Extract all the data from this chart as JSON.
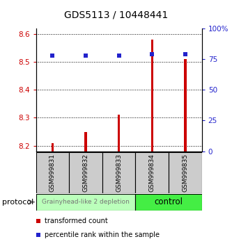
{
  "title": "GDS5113 / 10448441",
  "samples": [
    "GSM999831",
    "GSM999832",
    "GSM999833",
    "GSM999834",
    "GSM999835"
  ],
  "transformed_counts": [
    8.21,
    8.25,
    8.31,
    8.58,
    8.51
  ],
  "percentile_ranks": [
    78,
    78,
    78,
    79,
    79
  ],
  "ylim_left": [
    8.18,
    8.62
  ],
  "ylim_right": [
    0,
    100
  ],
  "yticks_left": [
    8.2,
    8.3,
    8.4,
    8.5,
    8.6
  ],
  "yticks_right": [
    0,
    25,
    50,
    75,
    100
  ],
  "ytick_labels_right": [
    "0",
    "25",
    "50",
    "75",
    "100%"
  ],
  "bar_color": "#cc0000",
  "dot_color": "#2222cc",
  "left_tick_color": "#cc0000",
  "right_tick_color": "#2222cc",
  "bar_width": 0.07,
  "dot_size": 5,
  "groups": [
    {
      "label": "Grainyhead-like 2 depletion",
      "n": 3,
      "color": "#bbffbb",
      "text_color": "#777777",
      "fontsize": 6.5
    },
    {
      "label": "control",
      "n": 2,
      "color": "#44ee44",
      "text_color": "#000000",
      "fontsize": 8.5
    }
  ],
  "sample_box_color": "#cccccc",
  "protocol_label": "protocol",
  "legend_items": [
    {
      "color": "#cc0000",
      "label": "transformed count"
    },
    {
      "color": "#2222cc",
      "label": "percentile rank within the sample"
    }
  ],
  "title_fontsize": 10,
  "tick_fontsize": 7.5,
  "sample_fontsize": 6.5,
  "legend_fontsize": 7
}
